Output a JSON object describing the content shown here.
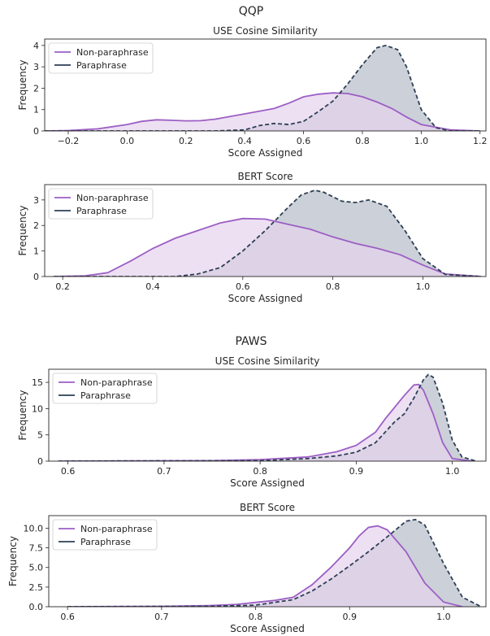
{
  "sections": [
    {
      "title": "QQP"
    },
    {
      "title": "PAWS"
    }
  ],
  "colors": {
    "non_paraphrase_line": "#9c5fc4",
    "non_paraphrase_fill": "#e6d3ee",
    "paraphrase_line": "#2e3f55",
    "paraphrase_fill": "#c9ced6",
    "overlap_fill": "#b5a6c2"
  },
  "chart_data": [
    {
      "type": "area",
      "title": "USE Cosine Similarity",
      "xlabel": "Score Assigned",
      "ylabel": "Frequency",
      "xlim": [
        -0.28,
        1.22
      ],
      "ylim": [
        0,
        4.3
      ],
      "xticks": [
        -0.2,
        0.0,
        0.2,
        0.4,
        0.6,
        0.8,
        1.0,
        1.2
      ],
      "xtick_labels": [
        "−0.2",
        "0.0",
        "0.2",
        "0.4",
        "0.6",
        "0.8",
        "1.0",
        "1.2"
      ],
      "yticks": [
        0,
        1,
        2,
        3,
        4
      ],
      "ytick_labels": [
        "0",
        "1",
        "2",
        "3",
        "4"
      ],
      "legend": "top-left",
      "series": [
        {
          "name": "Non-paraphrase",
          "style": "solid",
          "x": [
            -0.28,
            -0.2,
            -0.1,
            0.0,
            0.05,
            0.1,
            0.15,
            0.2,
            0.25,
            0.3,
            0.4,
            0.5,
            0.55,
            0.6,
            0.65,
            0.7,
            0.75,
            0.8,
            0.85,
            0.9,
            0.95,
            1.0,
            1.1,
            1.2
          ],
          "y": [
            0,
            0.02,
            0.1,
            0.3,
            0.45,
            0.52,
            0.5,
            0.47,
            0.48,
            0.55,
            0.8,
            1.05,
            1.3,
            1.6,
            1.72,
            1.78,
            1.75,
            1.6,
            1.35,
            1.05,
            0.65,
            0.3,
            0.05,
            0
          ]
        },
        {
          "name": "Paraphrase",
          "style": "dashed",
          "x": [
            -0.28,
            0.3,
            0.4,
            0.45,
            0.5,
            0.55,
            0.6,
            0.65,
            0.7,
            0.75,
            0.8,
            0.85,
            0.88,
            0.92,
            0.95,
            1.0,
            1.05,
            1.1,
            1.2
          ],
          "y": [
            0,
            0,
            0.05,
            0.25,
            0.35,
            0.3,
            0.45,
            0.9,
            1.4,
            2.2,
            3.1,
            3.9,
            4.0,
            3.8,
            3.0,
            1.0,
            0.15,
            0,
            0
          ]
        }
      ]
    },
    {
      "type": "area",
      "title": "BERT Score",
      "xlabel": "Score Assigned",
      "ylabel": "Frequency",
      "xlim": [
        0.16,
        1.14
      ],
      "ylim": [
        0,
        3.6
      ],
      "xticks": [
        0.2,
        0.4,
        0.6,
        0.8,
        1.0
      ],
      "xtick_labels": [
        "0.2",
        "0.4",
        "0.6",
        "0.8",
        "1.0"
      ],
      "yticks": [
        0,
        1,
        2,
        3
      ],
      "ytick_labels": [
        "0",
        "1",
        "2",
        "3"
      ],
      "legend": "top-left",
      "series": [
        {
          "name": "Non-paraphrase",
          "style": "solid",
          "x": [
            0.18,
            0.25,
            0.3,
            0.35,
            0.4,
            0.45,
            0.5,
            0.55,
            0.6,
            0.65,
            0.7,
            0.75,
            0.8,
            0.85,
            0.9,
            0.95,
            1.0,
            1.05,
            1.13
          ],
          "y": [
            0,
            0.03,
            0.15,
            0.6,
            1.1,
            1.5,
            1.8,
            2.1,
            2.27,
            2.25,
            2.05,
            1.85,
            1.55,
            1.3,
            1.1,
            0.85,
            0.45,
            0.1,
            0
          ]
        },
        {
          "name": "Paraphrase",
          "style": "dashed",
          "x": [
            0.18,
            0.45,
            0.5,
            0.55,
            0.6,
            0.65,
            0.7,
            0.73,
            0.76,
            0.78,
            0.82,
            0.85,
            0.88,
            0.92,
            0.96,
            1.0,
            1.05,
            1.13
          ],
          "y": [
            0,
            0,
            0.1,
            0.35,
            1.0,
            1.8,
            2.7,
            3.2,
            3.38,
            3.3,
            2.95,
            2.9,
            3.0,
            2.75,
            1.8,
            0.7,
            0.08,
            0
          ]
        }
      ]
    },
    {
      "type": "area",
      "title": "USE Cosine Similarity",
      "xlabel": "Score Assigned",
      "ylabel": "Frequency",
      "xlim": [
        0.58,
        1.035
      ],
      "ylim": [
        0,
        17.5
      ],
      "xticks": [
        0.6,
        0.7,
        0.8,
        0.9,
        1.0
      ],
      "xtick_labels": [
        "0.6",
        "0.7",
        "0.8",
        "0.9",
        "1.0"
      ],
      "yticks": [
        0,
        5,
        10,
        15
      ],
      "ytick_labels": [
        "0",
        "5",
        "10",
        "15"
      ],
      "legend": "top-left",
      "series": [
        {
          "name": "Non-paraphrase",
          "style": "solid",
          "x": [
            0.59,
            0.75,
            0.8,
            0.85,
            0.88,
            0.9,
            0.92,
            0.93,
            0.95,
            0.96,
            0.965,
            0.97,
            0.98,
            0.99,
            1.0,
            1.02
          ],
          "y": [
            0,
            0.1,
            0.3,
            0.8,
            1.8,
            3.0,
            5.5,
            8.0,
            12.5,
            14.5,
            14.6,
            13.5,
            9.0,
            3.5,
            0.5,
            0
          ]
        },
        {
          "name": "Paraphrase",
          "style": "dashed",
          "x": [
            0.59,
            0.8,
            0.85,
            0.88,
            0.9,
            0.92,
            0.94,
            0.95,
            0.96,
            0.97,
            0.975,
            0.98,
            0.99,
            1.0,
            1.01,
            1.025
          ],
          "y": [
            0,
            0.1,
            0.5,
            1.0,
            1.7,
            3.5,
            7.5,
            9.0,
            12.0,
            15.5,
            16.5,
            16.0,
            11.0,
            4.0,
            0.8,
            0
          ]
        }
      ]
    },
    {
      "type": "area",
      "title": "BERT Score",
      "xlabel": "Score Assigned",
      "ylabel": "Frequency",
      "xlim": [
        0.58,
        1.045
      ],
      "ylim": [
        0,
        11.6
      ],
      "xticks": [
        0.6,
        0.7,
        0.8,
        0.9,
        1.0
      ],
      "xtick_labels": [
        "0.6",
        "0.7",
        "0.8",
        "0.9",
        "1.0"
      ],
      "yticks": [
        0,
        2.5,
        5.0,
        7.5,
        10.0
      ],
      "ytick_labels": [
        "0.0",
        "2.5",
        "5.0",
        "7.5",
        "10.0"
      ],
      "legend": "top-left",
      "series": [
        {
          "name": "Non-paraphrase",
          "style": "solid",
          "x": [
            0.6,
            0.7,
            0.75,
            0.78,
            0.8,
            0.82,
            0.84,
            0.86,
            0.88,
            0.9,
            0.91,
            0.92,
            0.93,
            0.94,
            0.96,
            0.98,
            1.0,
            1.02
          ],
          "y": [
            0,
            0.05,
            0.15,
            0.3,
            0.55,
            0.8,
            1.2,
            2.8,
            5.0,
            7.5,
            9.0,
            10.1,
            10.3,
            9.8,
            7.0,
            3.0,
            0.6,
            0
          ]
        },
        {
          "name": "Paraphrase",
          "style": "dashed",
          "x": [
            0.6,
            0.75,
            0.8,
            0.84,
            0.86,
            0.88,
            0.9,
            0.92,
            0.94,
            0.96,
            0.97,
            0.98,
            1.0,
            1.02,
            1.04
          ],
          "y": [
            0,
            0.05,
            0.2,
            0.9,
            2.0,
            3.5,
            5.2,
            7.0,
            8.9,
            10.9,
            11.1,
            10.4,
            5.5,
            1.2,
            0
          ]
        }
      ]
    }
  ]
}
